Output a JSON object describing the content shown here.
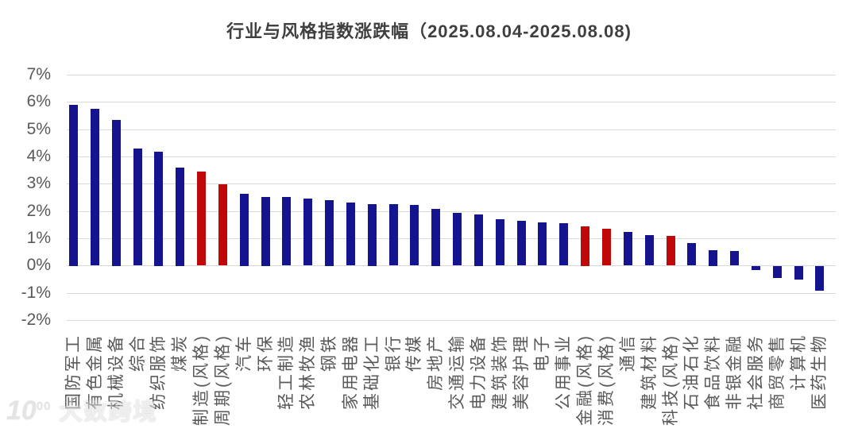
{
  "page": {
    "title": "行业与风格指数涨跌幅（2025.08.04-2025.08.08)"
  },
  "watermark": {
    "logo_main": "10",
    "logo_sup": "00",
    "brand": "大数跨境"
  },
  "colors": {
    "industry_bar": "#14148f",
    "style_bar": "#c00808",
    "gridline": "#d9d9d9",
    "axis_text": "#595959",
    "title_text": "#3f3f3f",
    "background": "#ffffff"
  },
  "chart_data": {
    "type": "bar",
    "title": "行业与风格指数涨跌幅（2025.08.04-2025.08.08)",
    "xlabel": "",
    "ylabel": "",
    "ylim": [
      -2,
      7
    ],
    "ytick_step": 1,
    "ytick_labels": [
      "7%",
      "6%",
      "5%",
      "4%",
      "3%",
      "2%",
      "1%",
      "0%",
      "-1%",
      "-2%"
    ],
    "grid": true,
    "legend": false,
    "bar_color_rule": "industry indices dark blue, style (风格) indices dark red",
    "items": [
      {
        "label": "国防军工",
        "value": 5.9,
        "group": "industry"
      },
      {
        "label": "有色金属",
        "value": 5.75,
        "group": "industry"
      },
      {
        "label": "机械设备",
        "value": 5.35,
        "group": "industry"
      },
      {
        "label": "综合",
        "value": 4.28,
        "group": "industry"
      },
      {
        "label": "纺织服饰",
        "value": 4.18,
        "group": "industry"
      },
      {
        "label": "煤炭",
        "value": 3.6,
        "group": "industry"
      },
      {
        "label": "制造(风格)",
        "value": 3.45,
        "group": "style"
      },
      {
        "label": "周期(风格)",
        "value": 2.97,
        "group": "style"
      },
      {
        "label": "汽车",
        "value": 2.64,
        "group": "industry"
      },
      {
        "label": "环保",
        "value": 2.52,
        "group": "industry"
      },
      {
        "label": "轻工制造",
        "value": 2.5,
        "group": "industry"
      },
      {
        "label": "农林牧渔",
        "value": 2.46,
        "group": "industry"
      },
      {
        "label": "钢铁",
        "value": 2.41,
        "group": "industry"
      },
      {
        "label": "家用电器",
        "value": 2.3,
        "group": "industry"
      },
      {
        "label": "基础化工",
        "value": 2.26,
        "group": "industry"
      },
      {
        "label": "银行",
        "value": 2.24,
        "group": "industry"
      },
      {
        "label": "传媒",
        "value": 2.21,
        "group": "industry"
      },
      {
        "label": "房地产",
        "value": 2.09,
        "group": "industry"
      },
      {
        "label": "交通运输",
        "value": 1.92,
        "group": "industry"
      },
      {
        "label": "电力设备",
        "value": 1.88,
        "group": "industry"
      },
      {
        "label": "建筑装饰",
        "value": 1.69,
        "group": "industry"
      },
      {
        "label": "美容护理",
        "value": 1.64,
        "group": "industry"
      },
      {
        "label": "电子",
        "value": 1.58,
        "group": "industry"
      },
      {
        "label": "公用事业",
        "value": 1.54,
        "group": "industry"
      },
      {
        "label": "金融(风格)",
        "value": 1.45,
        "group": "style"
      },
      {
        "label": "消费(风格)",
        "value": 1.34,
        "group": "style"
      },
      {
        "label": "通信",
        "value": 1.22,
        "group": "industry"
      },
      {
        "label": "建筑材料",
        "value": 1.12,
        "group": "industry"
      },
      {
        "label": "科技(风格)",
        "value": 1.08,
        "group": "style"
      },
      {
        "label": "石油石化",
        "value": 0.83,
        "group": "industry"
      },
      {
        "label": "食品饮料",
        "value": 0.57,
        "group": "industry"
      },
      {
        "label": "非银金融",
        "value": 0.52,
        "group": "industry"
      },
      {
        "label": "社会服务",
        "value": -0.15,
        "group": "industry"
      },
      {
        "label": "商贸零售",
        "value": -0.45,
        "group": "industry"
      },
      {
        "label": "计算机",
        "value": -0.5,
        "group": "industry"
      },
      {
        "label": "医药生物",
        "value": -0.9,
        "group": "industry"
      }
    ]
  }
}
